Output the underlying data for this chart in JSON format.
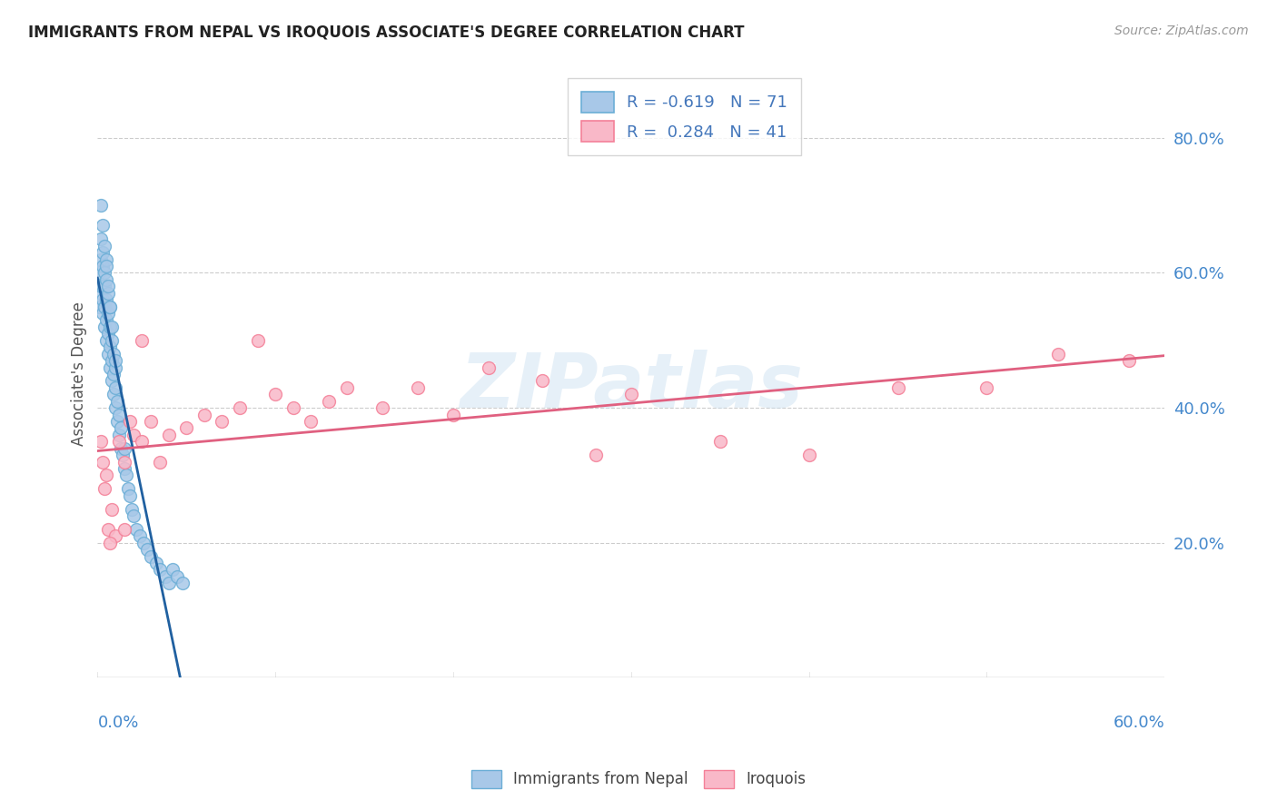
{
  "title": "IMMIGRANTS FROM NEPAL VS IROQUOIS ASSOCIATE'S DEGREE CORRELATION CHART",
  "source": "Source: ZipAtlas.com",
  "ylabel": "Associate's Degree",
  "xmin": 0.0,
  "xmax": 0.6,
  "ymin": 0.0,
  "ymax": 0.9,
  "yticks": [
    0.2,
    0.4,
    0.6,
    0.8
  ],
  "ytick_labels": [
    "20.0%",
    "40.0%",
    "60.0%",
    "80.0%"
  ],
  "blue_R": -0.619,
  "blue_N": 71,
  "pink_R": 0.284,
  "pink_N": 41,
  "blue_face": "#a8c8e8",
  "blue_edge": "#6baed6",
  "pink_face": "#f9b8c8",
  "pink_edge": "#f48098",
  "blue_line_color": "#2060a0",
  "pink_line_color": "#e06080",
  "blue_scatter_x": [
    0.001,
    0.001,
    0.002,
    0.002,
    0.002,
    0.002,
    0.003,
    0.003,
    0.003,
    0.003,
    0.003,
    0.004,
    0.004,
    0.004,
    0.004,
    0.005,
    0.005,
    0.005,
    0.005,
    0.005,
    0.006,
    0.006,
    0.006,
    0.006,
    0.007,
    0.007,
    0.007,
    0.007,
    0.008,
    0.008,
    0.008,
    0.009,
    0.009,
    0.009,
    0.01,
    0.01,
    0.01,
    0.011,
    0.011,
    0.012,
    0.012,
    0.013,
    0.013,
    0.014,
    0.015,
    0.015,
    0.016,
    0.017,
    0.018,
    0.019,
    0.02,
    0.022,
    0.024,
    0.026,
    0.028,
    0.03,
    0.033,
    0.035,
    0.038,
    0.04,
    0.042,
    0.045,
    0.048,
    0.002,
    0.003,
    0.004,
    0.005,
    0.006,
    0.007,
    0.008,
    0.01
  ],
  "blue_scatter_y": [
    0.55,
    0.6,
    0.57,
    0.62,
    0.58,
    0.65,
    0.54,
    0.58,
    0.61,
    0.56,
    0.63,
    0.52,
    0.55,
    0.58,
    0.6,
    0.5,
    0.53,
    0.56,
    0.59,
    0.62,
    0.48,
    0.51,
    0.54,
    0.57,
    0.46,
    0.49,
    0.52,
    0.55,
    0.44,
    0.47,
    0.5,
    0.42,
    0.45,
    0.48,
    0.4,
    0.43,
    0.46,
    0.38,
    0.41,
    0.36,
    0.39,
    0.34,
    0.37,
    0.33,
    0.31,
    0.34,
    0.3,
    0.28,
    0.27,
    0.25,
    0.24,
    0.22,
    0.21,
    0.2,
    0.19,
    0.18,
    0.17,
    0.16,
    0.15,
    0.14,
    0.16,
    0.15,
    0.14,
    0.7,
    0.67,
    0.64,
    0.61,
    0.58,
    0.55,
    0.52,
    0.47
  ],
  "pink_scatter_x": [
    0.002,
    0.003,
    0.004,
    0.005,
    0.006,
    0.008,
    0.01,
    0.012,
    0.015,
    0.018,
    0.02,
    0.025,
    0.03,
    0.035,
    0.04,
    0.05,
    0.06,
    0.07,
    0.08,
    0.09,
    0.1,
    0.11,
    0.12,
    0.13,
    0.14,
    0.16,
    0.18,
    0.2,
    0.22,
    0.25,
    0.28,
    0.3,
    0.35,
    0.4,
    0.45,
    0.5,
    0.54,
    0.58,
    0.007,
    0.015,
    0.025
  ],
  "pink_scatter_y": [
    0.35,
    0.32,
    0.28,
    0.3,
    0.22,
    0.25,
    0.21,
    0.35,
    0.32,
    0.38,
    0.36,
    0.35,
    0.38,
    0.32,
    0.36,
    0.37,
    0.39,
    0.38,
    0.4,
    0.5,
    0.42,
    0.4,
    0.38,
    0.41,
    0.43,
    0.4,
    0.43,
    0.39,
    0.46,
    0.44,
    0.33,
    0.42,
    0.35,
    0.33,
    0.43,
    0.43,
    0.48,
    0.47,
    0.2,
    0.22,
    0.5
  ],
  "watermark": "ZIPatlas",
  "legend_blue_label": "Immigrants from Nepal",
  "legend_pink_label": "Iroquois"
}
